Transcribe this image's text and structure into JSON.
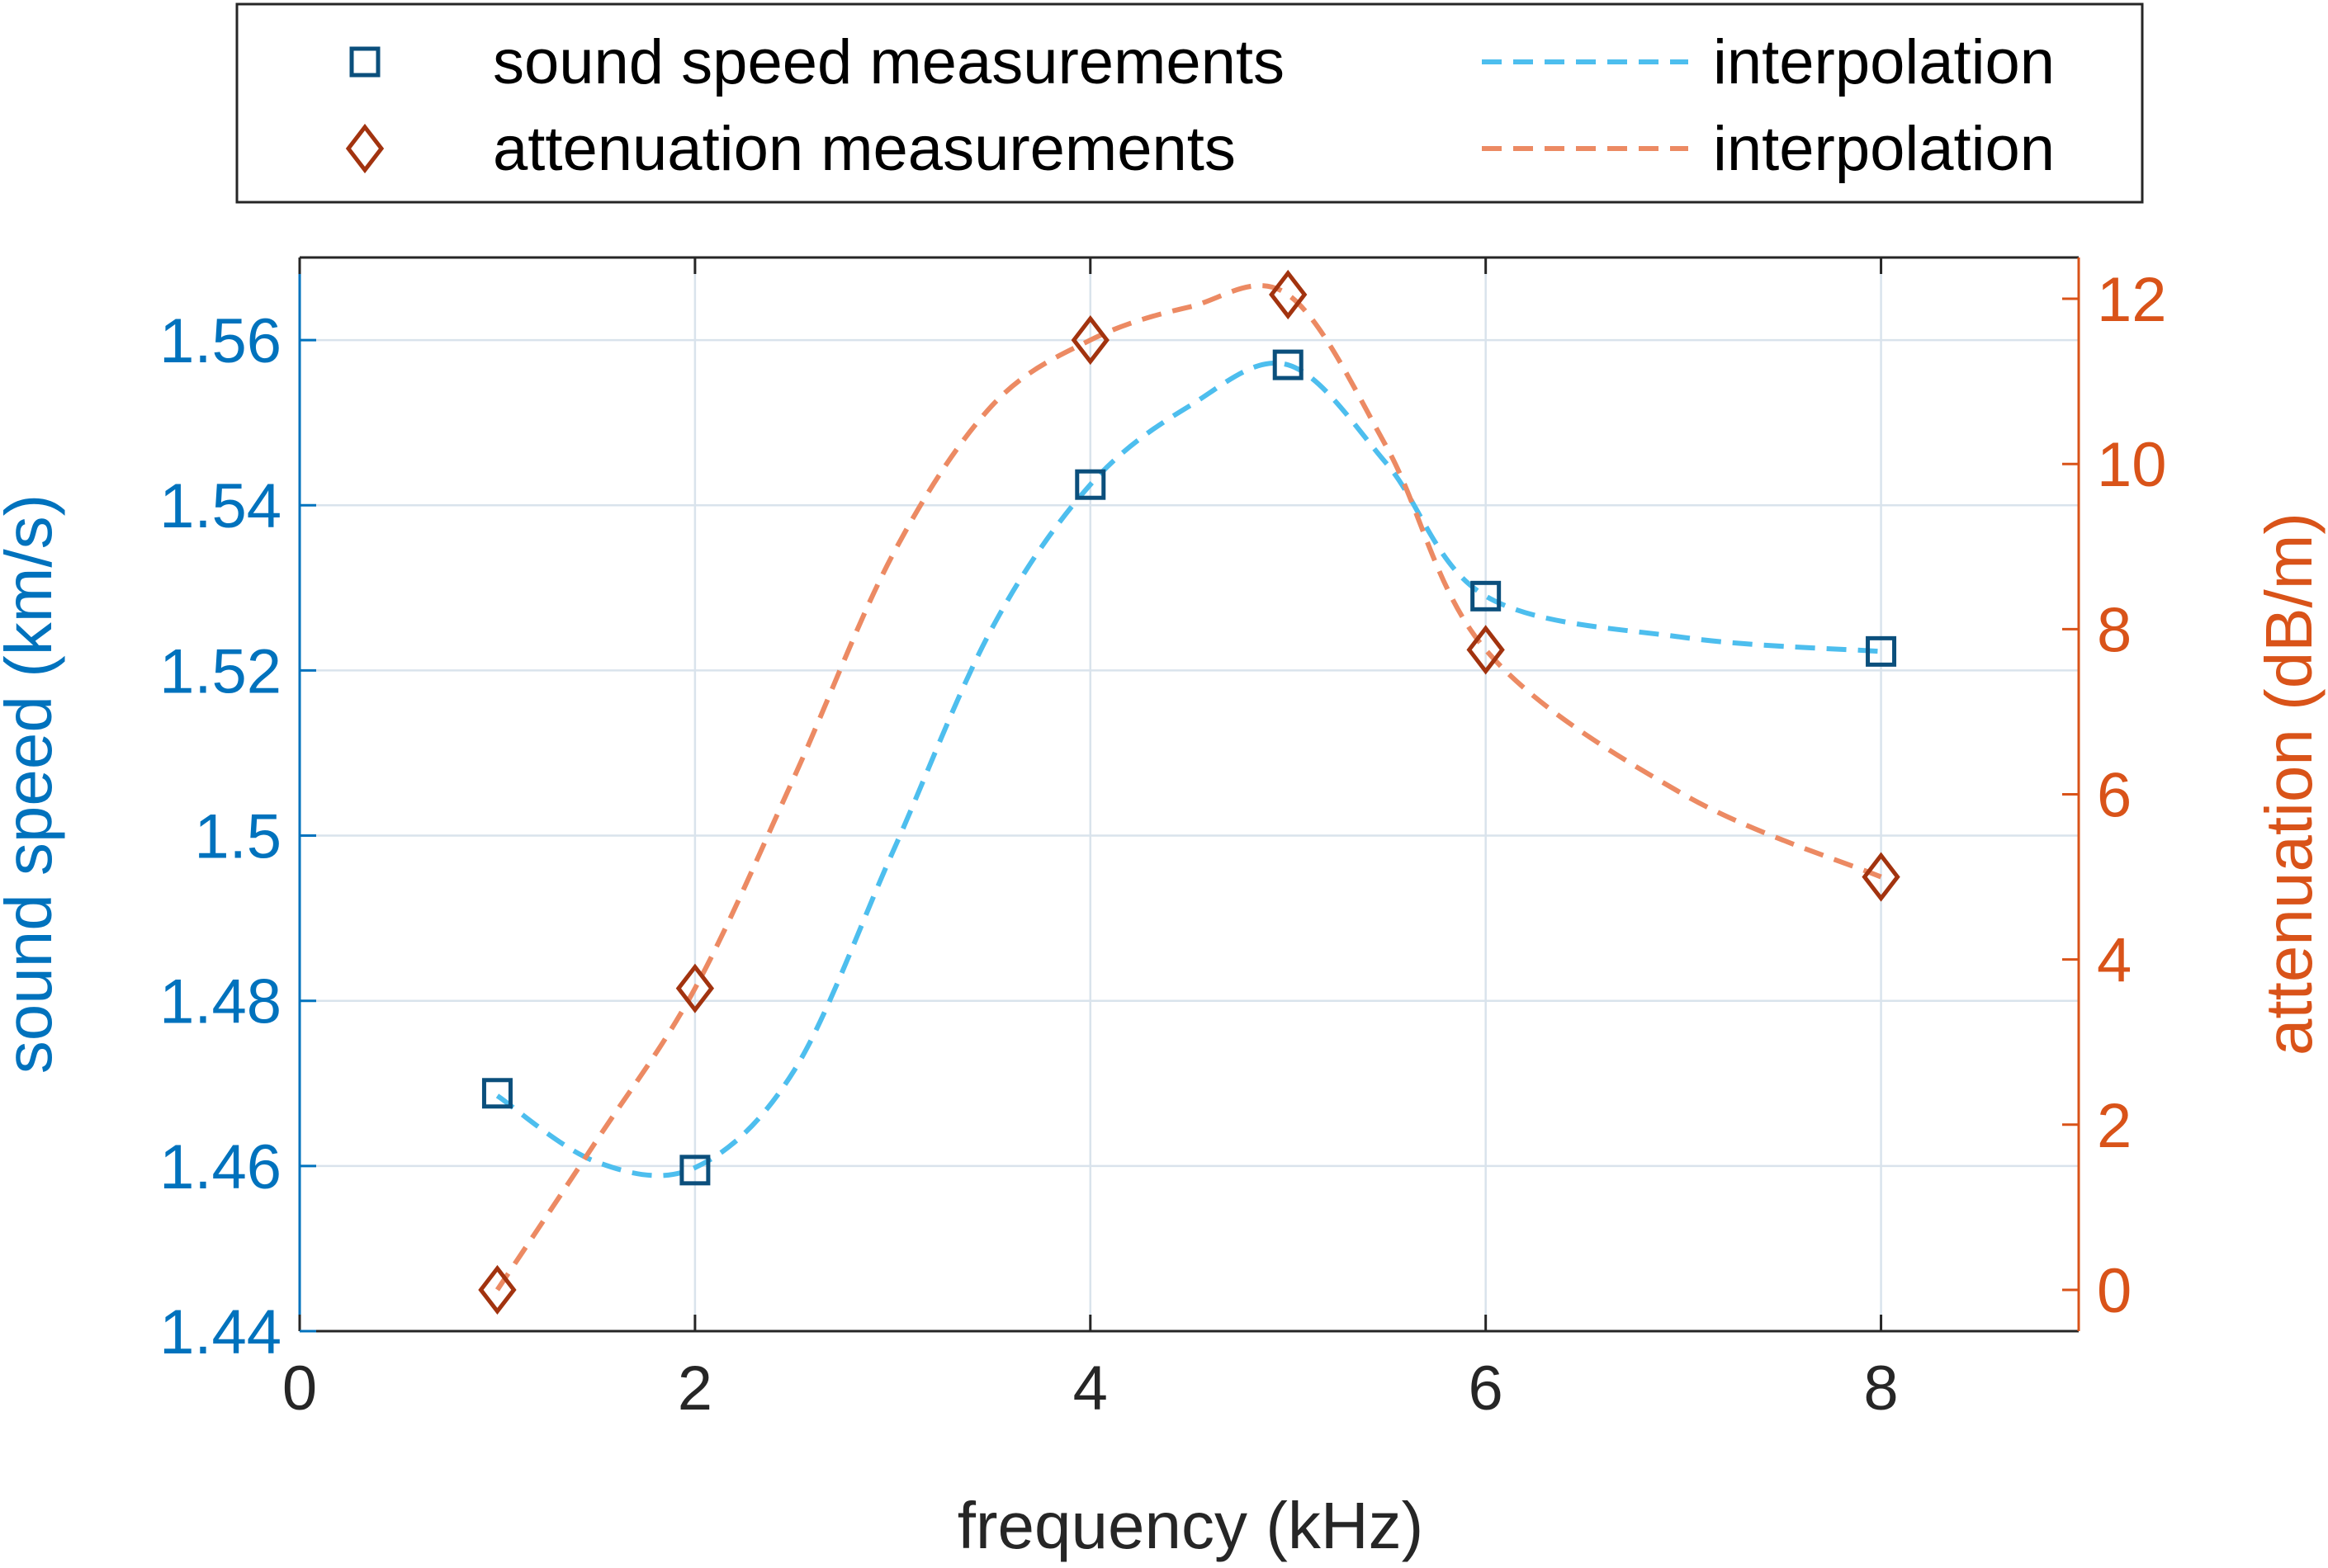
{
  "chart_data": {
    "type": "line",
    "title": "",
    "xlabel": "frequency (kHz)",
    "ylabel_left": "sound speed (km/s)",
    "ylabel_right": "attenuation (dB/m)",
    "xlim": [
      0,
      9
    ],
    "ylim_left": [
      1.44,
      1.57
    ],
    "ylim_right": [
      -0.5,
      12.5
    ],
    "x_ticks": [
      0,
      2,
      4,
      6,
      8
    ],
    "x_tick_labels": [
      "0",
      "2",
      "4",
      "6",
      "8"
    ],
    "y_left_ticks": [
      1.44,
      1.46,
      1.48,
      1.5,
      1.52,
      1.54,
      1.56
    ],
    "y_left_tick_labels": [
      "1.44",
      "1.46",
      "1.48",
      "1.5",
      "1.52",
      "1.54",
      "1.56"
    ],
    "y_right_ticks": [
      0,
      2,
      4,
      6,
      8,
      10,
      12
    ],
    "y_right_tick_labels": [
      "0",
      "2",
      "4",
      "6",
      "8",
      "10",
      "12"
    ],
    "grid": true,
    "legend_position": "top",
    "colors": {
      "left_axis": "#0072BD",
      "right_axis": "#D95319",
      "sound_marker": "#0B4F7C",
      "sound_line": "#4DBEEE",
      "atten_marker": "#A2330F",
      "atten_line": "#EC8A63",
      "grid": "#D9E3EC",
      "box": "#262626"
    },
    "series": [
      {
        "name": "sound speed measurements",
        "kind": "markers",
        "marker": "square",
        "axis": "left",
        "x": [
          1,
          2,
          4,
          5,
          6,
          8
        ],
        "values": [
          1.4688,
          1.4595,
          1.5425,
          1.557,
          1.529,
          1.5223
        ]
      },
      {
        "name": "interpolation",
        "kind": "dashed-line",
        "axis": "left",
        "x": [
          1,
          1.5,
          2,
          2.5,
          3,
          3.5,
          4,
          4.5,
          5,
          5.5,
          6,
          7,
          8
        ],
        "values": [
          1.4685,
          1.4605,
          1.4598,
          1.4715,
          1.498,
          1.525,
          1.5425,
          1.552,
          1.557,
          1.545,
          1.529,
          1.524,
          1.5223
        ]
      },
      {
        "name": "attenuation measurements",
        "kind": "markers",
        "marker": "diamond",
        "axis": "right",
        "x": [
          1,
          2,
          4,
          5,
          6,
          8
        ],
        "values": [
          0,
          3.65,
          11.5,
          12.05,
          7.75,
          5
        ]
      },
      {
        "name": "interpolation",
        "kind": "dashed-line",
        "axis": "right",
        "x": [
          1,
          1.5,
          2,
          2.5,
          3,
          3.5,
          4,
          4.5,
          5,
          5.5,
          6,
          7,
          8
        ],
        "values": [
          0,
          1.8,
          3.65,
          6.2,
          8.9,
          10.7,
          11.5,
          11.9,
          12.05,
          10.2,
          7.75,
          6.0,
          5
        ]
      }
    ]
  }
}
